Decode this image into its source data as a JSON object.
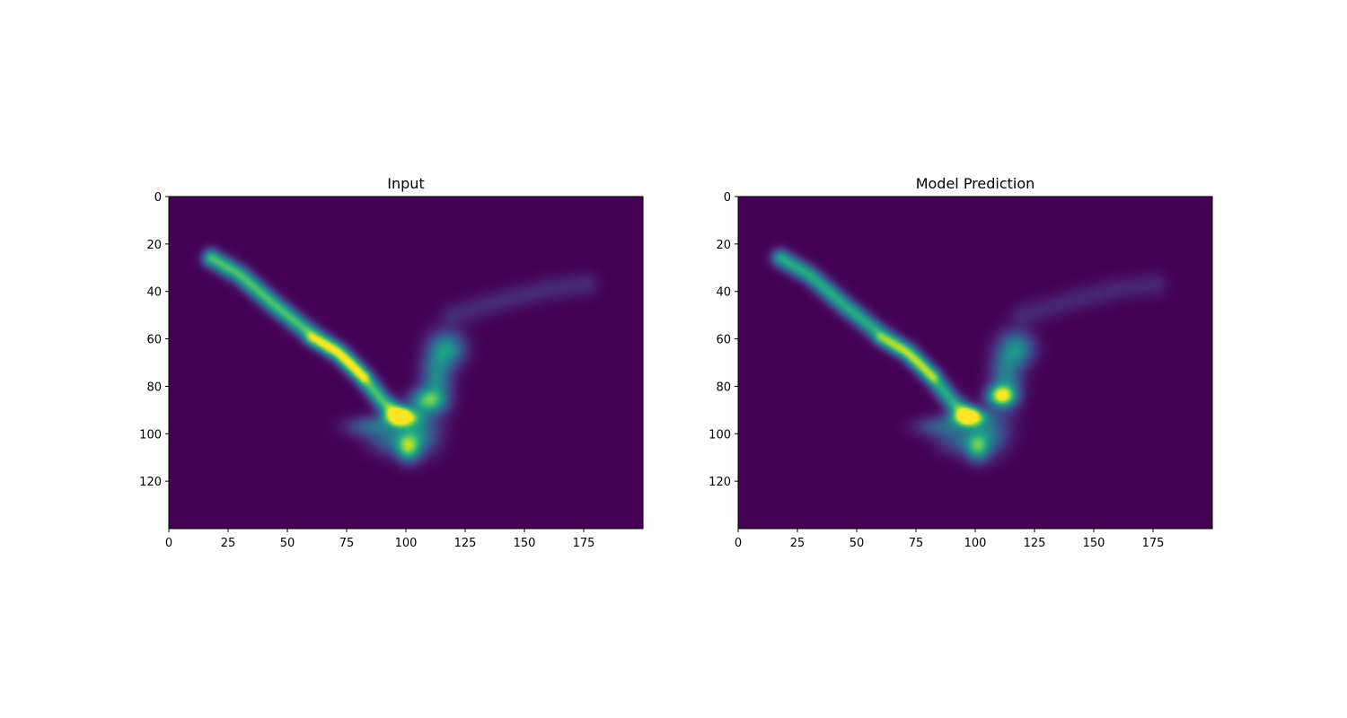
{
  "chart_data": [
    {
      "type": "heatmap",
      "title": "Input",
      "colormap": "viridis",
      "xlim": [
        0,
        200
      ],
      "ylim": [
        140,
        0
      ],
      "xticks": [
        0,
        25,
        50,
        75,
        100,
        125,
        150,
        175
      ],
      "yticks": [
        0,
        20,
        40,
        60,
        80,
        100,
        120
      ],
      "grid": false,
      "background_value": 0.0,
      "blobs": [
        {
          "path": [
            [
              18,
              26
            ],
            [
              30,
              33
            ],
            [
              45,
              46
            ],
            [
              60,
              58
            ],
            [
              72,
              66
            ],
            [
              82,
              76
            ],
            [
              90,
              86
            ],
            [
              97,
              92
            ]
          ],
          "intensity": 0.72,
          "width": 2.6
        },
        {
          "path": [
            [
              60,
              60
            ],
            [
              70,
              65
            ],
            [
              76,
              70
            ],
            [
              82,
              76
            ]
          ],
          "intensity": 0.35,
          "width": 2.0
        },
        {
          "center": [
            98,
            93
          ],
          "intensity": 1.0,
          "sx": 5,
          "sy": 2.6
        },
        {
          "center": [
            109,
            86
          ],
          "intensity": 0.6,
          "sx": 5,
          "sy": 3.5
        },
        {
          "center": [
            113,
            76
          ],
          "intensity": 0.45,
          "sx": 4.5,
          "sy": 9
        },
        {
          "center": [
            118,
            64
          ],
          "intensity": 0.45,
          "sx": 5,
          "sy": 5
        },
        {
          "center": [
            101,
            106
          ],
          "intensity": 0.6,
          "sx": 3.5,
          "sy": 4
        },
        {
          "center": [
            105,
            100
          ],
          "intensity": 0.42,
          "sx": 6,
          "sy": 6
        },
        {
          "center": [
            85,
            97
          ],
          "intensity": 0.32,
          "sx": 7,
          "sy": 3
        },
        {
          "center": [
            93,
            103
          ],
          "intensity": 0.28,
          "sx": 6,
          "sy": 4
        },
        {
          "path": [
            [
              120,
              50
            ],
            [
              140,
              44
            ],
            [
              160,
              39
            ],
            [
              176,
              37
            ]
          ],
          "intensity": 0.12,
          "width": 3.5
        }
      ]
    },
    {
      "type": "heatmap",
      "title": "Model Prediction",
      "colormap": "viridis",
      "xlim": [
        0,
        200
      ],
      "ylim": [
        140,
        0
      ],
      "xticks": [
        0,
        25,
        50,
        75,
        100,
        125,
        150,
        175
      ],
      "yticks": [
        0,
        20,
        40,
        60,
        80,
        100,
        120
      ],
      "grid": false,
      "background_value": 0.0,
      "blobs": [
        {
          "path": [
            [
              18,
              26
            ],
            [
              30,
              33
            ],
            [
              45,
              46
            ],
            [
              60,
              58
            ],
            [
              72,
              66
            ],
            [
              82,
              76
            ],
            [
              90,
              86
            ],
            [
              97,
              92
            ]
          ],
          "intensity": 0.62,
          "width": 2.6
        },
        {
          "path": [
            [
              60,
              60
            ],
            [
              70,
              65
            ],
            [
              76,
              70
            ],
            [
              82,
              76
            ]
          ],
          "intensity": 0.3,
          "width": 2.0
        },
        {
          "center": [
            97,
            93
          ],
          "intensity": 0.95,
          "sx": 5,
          "sy": 2.6
        },
        {
          "center": [
            111,
            84
          ],
          "intensity": 0.85,
          "sx": 4,
          "sy": 3
        },
        {
          "center": [
            113,
            76
          ],
          "intensity": 0.42,
          "sx": 4.5,
          "sy": 9
        },
        {
          "center": [
            118,
            64
          ],
          "intensity": 0.42,
          "sx": 5,
          "sy": 5
        },
        {
          "center": [
            101,
            106
          ],
          "intensity": 0.5,
          "sx": 3.5,
          "sy": 4
        },
        {
          "center": [
            105,
            100
          ],
          "intensity": 0.38,
          "sx": 6,
          "sy": 6
        },
        {
          "center": [
            85,
            97
          ],
          "intensity": 0.28,
          "sx": 7,
          "sy": 3
        },
        {
          "center": [
            93,
            103
          ],
          "intensity": 0.25,
          "sx": 6,
          "sy": 4
        },
        {
          "path": [
            [
              120,
              50
            ],
            [
              140,
              44
            ],
            [
              160,
              39
            ],
            [
              176,
              37
            ]
          ],
          "intensity": 0.11,
          "width": 3.5
        }
      ]
    }
  ]
}
